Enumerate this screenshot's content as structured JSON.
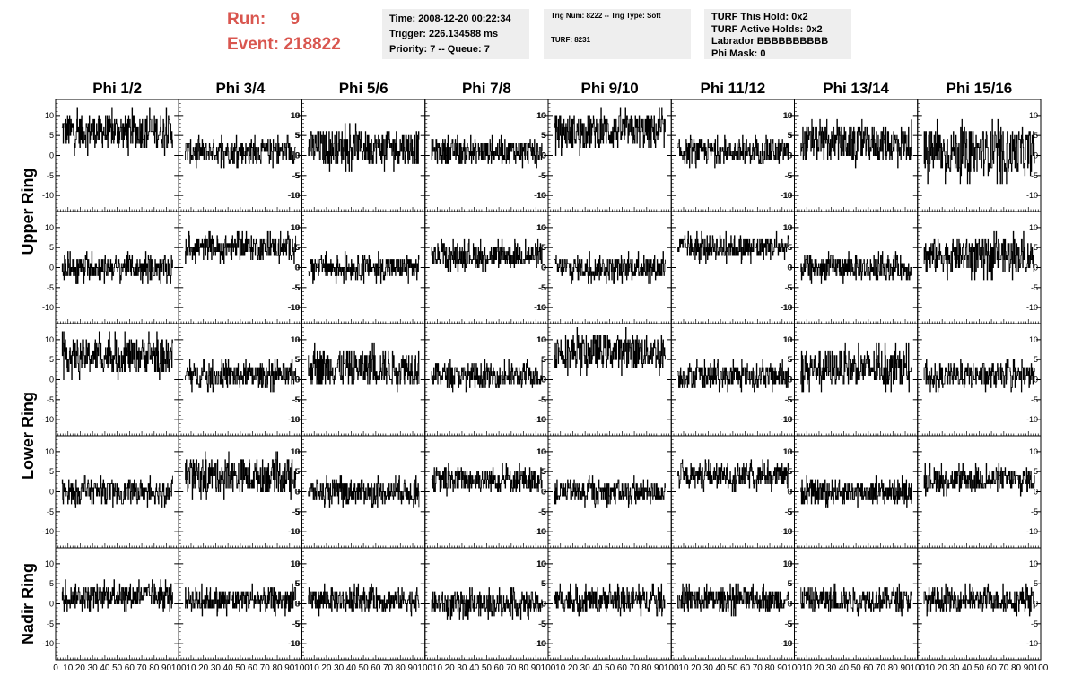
{
  "header": {
    "run_label": "Run:",
    "run_value": "9",
    "event_label": "Event:",
    "event_value": "218822",
    "time_line": "Time: 2008-12-20 00:22:34",
    "trigger_line": "Trigger: 226.134588 ms",
    "priority_line": "Priority: 7 -- Queue: 7",
    "trig_num_line": "Trig Num: 8222 -- Trig Type: Soft",
    "turf_line": "TURF: 8231",
    "turf_hold_line": "TURF This Hold: 0x2",
    "turf_active_line": "TURF Active Holds: 0x2",
    "labrador_line": "Labrador BBBBBBBBBB",
    "phi_mask_line": "Phi Mask: 0"
  },
  "colors": {
    "accent": "#d9564f",
    "panel_bg": "#eeeeee",
    "trace": "#000000"
  },
  "chart_data": {
    "type": "line",
    "columns": [
      "Phi 1/2",
      "Phi 3/4",
      "Phi 5/6",
      "Phi 7/8",
      "Phi 9/10",
      "Phi 11/12",
      "Phi 13/14",
      "Phi 15/16"
    ],
    "rows": [
      "Upper Ring",
      "Upper Ring",
      "Lower Ring",
      "Lower Ring",
      "Nadir Ring"
    ],
    "ring_labels": [
      {
        "label": "Upper Ring",
        "rows": [
          0,
          1
        ]
      },
      {
        "label": "Lower Ring",
        "rows": [
          2,
          3
        ]
      },
      {
        "label": "Nadir Ring",
        "rows": [
          4
        ]
      }
    ],
    "xlim": [
      0,
      100
    ],
    "ylim": [
      -14,
      14
    ],
    "xticks": [
      "0",
      "10",
      "20",
      "30",
      "40",
      "50",
      "60",
      "70",
      "80",
      "90",
      "100"
    ],
    "yticks": [
      "-10",
      "-5",
      "0",
      "5",
      "10"
    ],
    "ytick_values": [
      -10,
      -5,
      0,
      5,
      10
    ],
    "samples_per_trace": 260,
    "trace_offsets": [
      [
        6,
        1,
        2,
        1,
        6,
        1,
        3,
        1
      ],
      [
        0,
        5,
        0,
        3,
        0,
        5,
        0,
        3
      ],
      [
        6,
        1,
        3,
        1,
        7,
        1,
        3,
        1
      ],
      [
        0,
        4,
        0,
        3,
        0,
        4,
        0,
        3
      ],
      [
        2,
        1,
        1,
        0,
        1,
        1,
        1,
        1
      ]
    ],
    "trace_amplitudes": [
      [
        3,
        2,
        3,
        2,
        3,
        2,
        3,
        4
      ],
      [
        2,
        2,
        2,
        2,
        2,
        2,
        2,
        3
      ],
      [
        3,
        2,
        3,
        2,
        3,
        2,
        3,
        2
      ],
      [
        2,
        3,
        2,
        2,
        2,
        2,
        2,
        2
      ],
      [
        2,
        2,
        2,
        2,
        2,
        2,
        2,
        2
      ]
    ]
  }
}
